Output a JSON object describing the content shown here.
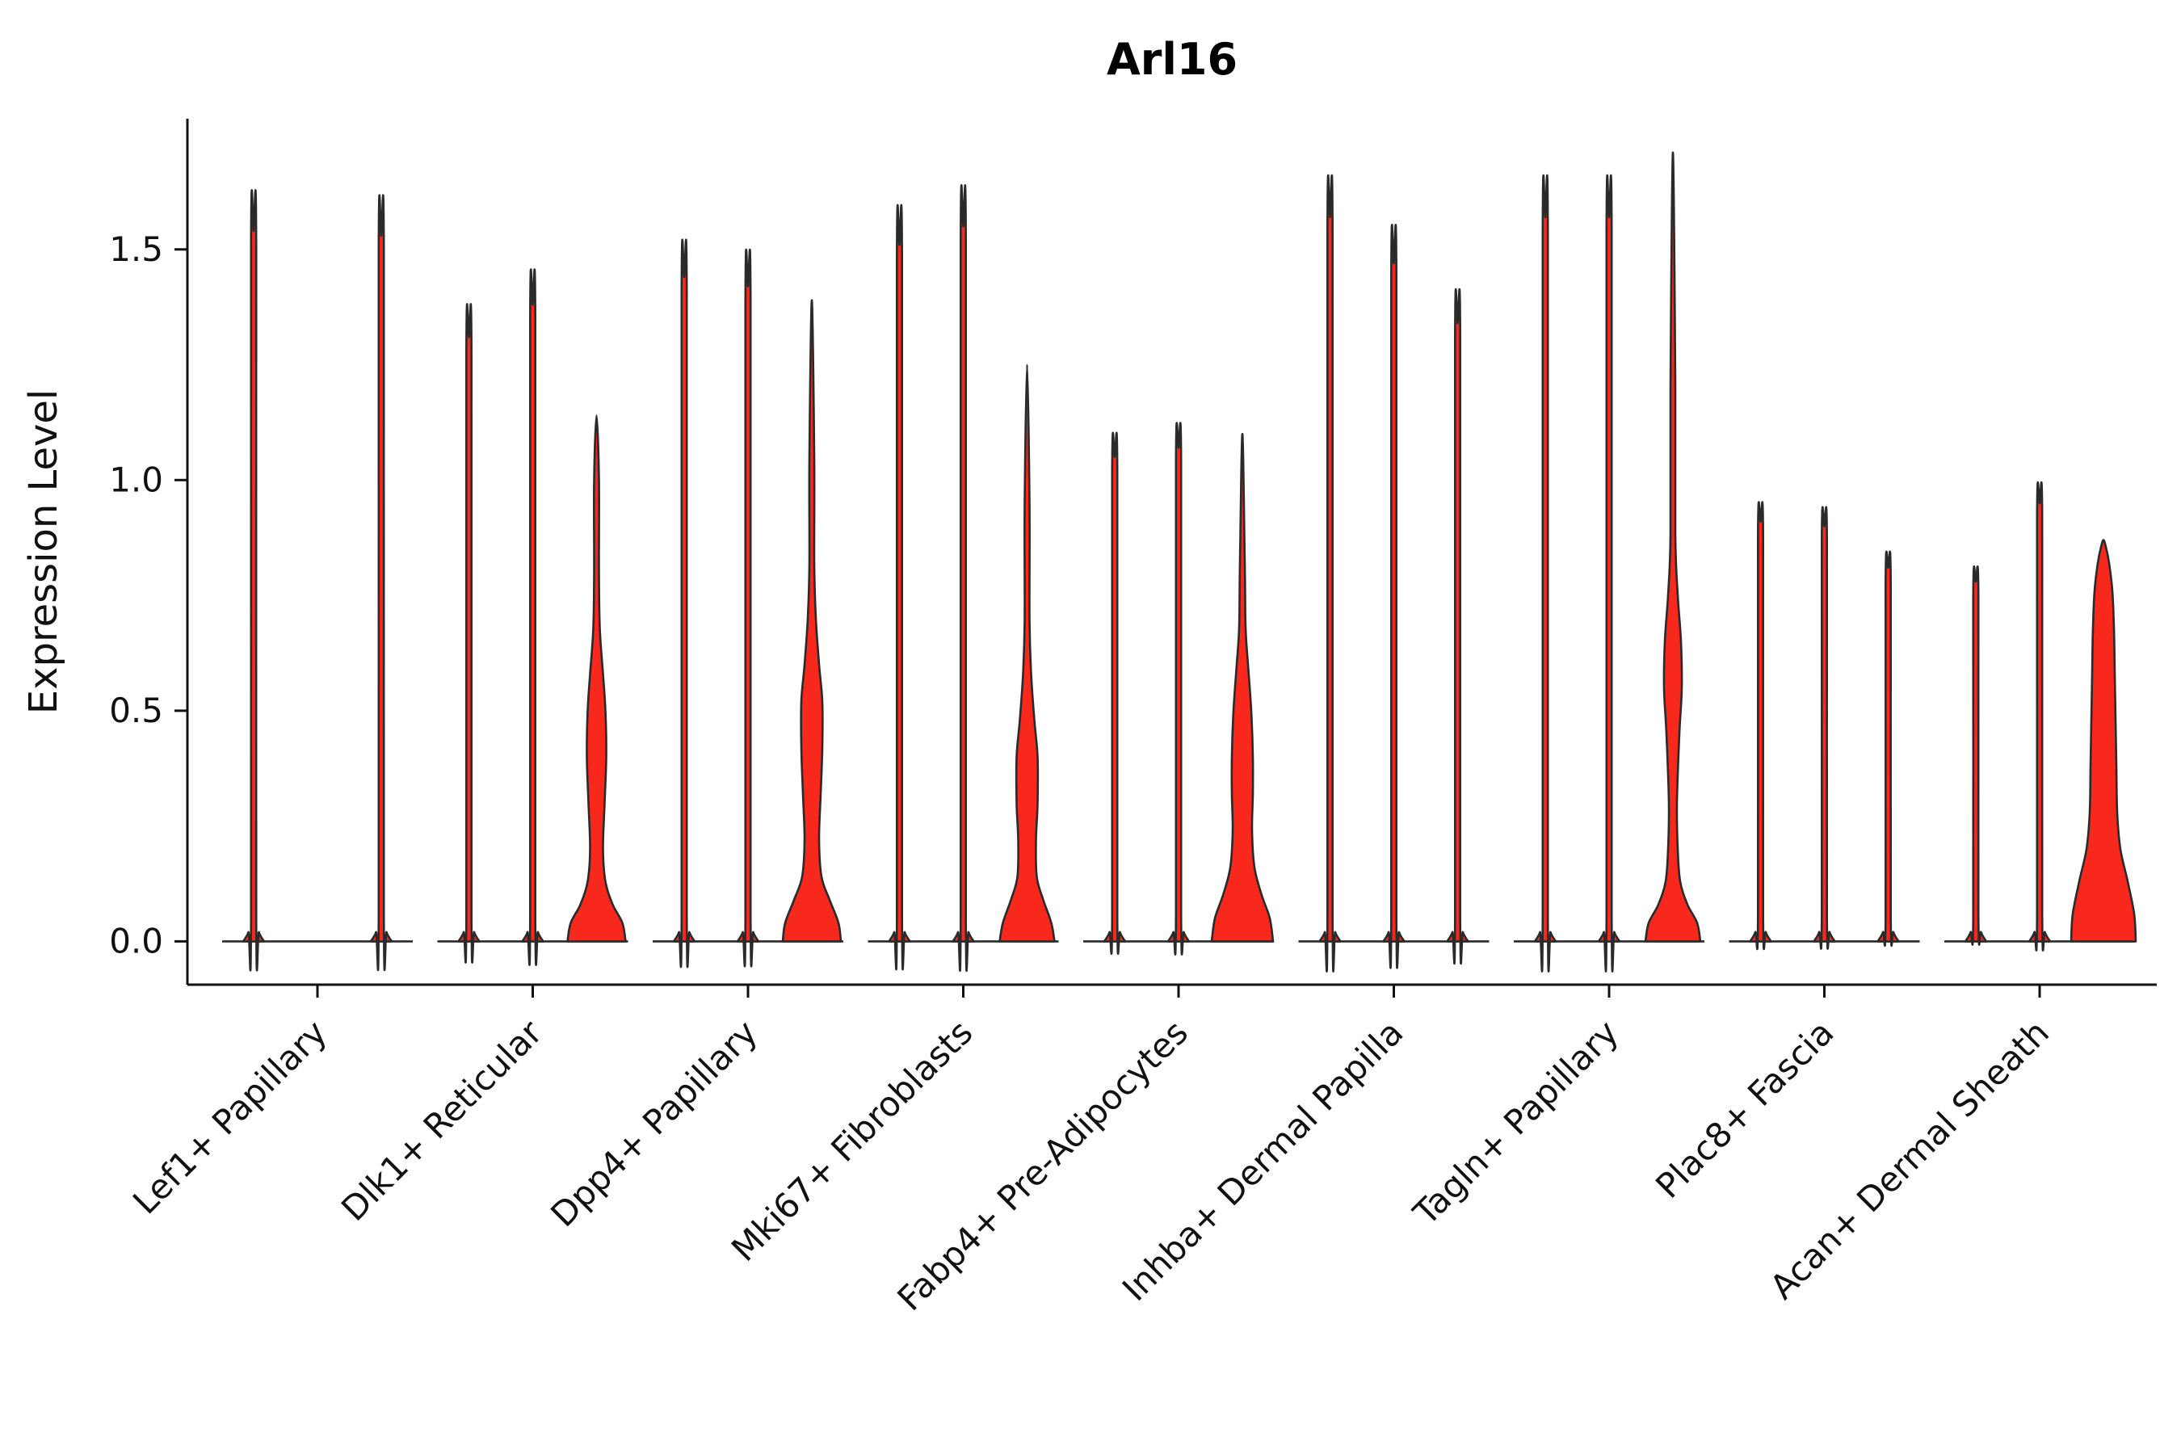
{
  "chart_data": {
    "type": "violin",
    "title": "Arl16",
    "ylabel": "Expression Level",
    "xlabel": "",
    "yticks": [
      0,
      0.5,
      1,
      1.5
    ],
    "ytick_labels": [
      "0.0",
      "0.5",
      "1.0",
      "1.5"
    ],
    "ylim": [
      -0.06,
      1.78
    ],
    "grid": false,
    "legend": "none",
    "fill_color": "#F8281C",
    "stroke_color": "#2A2A2A",
    "axis_color": "#111111",
    "violins_per_group": 3,
    "groups": [
      {
        "label": "Lef1+ Papillary",
        "violins": [
          {
            "max": 1.54
          },
          {
            "max": 0
          },
          {
            "max": 1.53
          }
        ]
      },
      {
        "label": "Dlk1+ Reticular",
        "violins": [
          {
            "max": 1.31
          },
          {
            "max": 1.38
          },
          {
            "max": 1.14,
            "profile": [
              [
                0,
                36
              ],
              [
                0.04,
                32
              ],
              [
                0.08,
                20
              ],
              [
                0.13,
                11
              ],
              [
                0.2,
                8
              ],
              [
                0.3,
                10
              ],
              [
                0.4,
                12
              ],
              [
                0.5,
                11
              ],
              [
                0.58,
                8
              ],
              [
                0.68,
                4
              ],
              [
                0.8,
                3
              ],
              [
                1.0,
                3
              ]
            ]
          }
        ]
      },
      {
        "label": "Dpp4+ Papillary",
        "violins": [
          {
            "max": 1.44
          },
          {
            "max": 1.42
          },
          {
            "max": 1.39,
            "profile": [
              [
                0,
                36
              ],
              [
                0.04,
                33
              ],
              [
                0.09,
                22
              ],
              [
                0.14,
                12
              ],
              [
                0.22,
                9
              ],
              [
                0.32,
                11
              ],
              [
                0.42,
                13
              ],
              [
                0.52,
                13
              ],
              [
                0.6,
                9
              ],
              [
                0.7,
                5
              ],
              [
                0.82,
                3
              ],
              [
                1.05,
                3
              ]
            ]
          }
        ]
      },
      {
        "label": "Mki67+ Fibroblasts",
        "violins": [
          {
            "max": 1.51
          },
          {
            "max": 1.55
          },
          {
            "max": 1.25,
            "profile": [
              [
                0,
                34
              ],
              [
                0.04,
                30
              ],
              [
                0.09,
                20
              ],
              [
                0.14,
                12
              ],
              [
                0.22,
                11
              ],
              [
                0.3,
                13
              ],
              [
                0.4,
                13
              ],
              [
                0.48,
                9
              ],
              [
                0.58,
                5
              ],
              [
                0.7,
                3
              ],
              [
                0.95,
                3
              ]
            ]
          }
        ]
      },
      {
        "label": "Fabp4+ Pre-Adipocytes",
        "violins": [
          {
            "max": 1.05
          },
          {
            "max": 1.07
          },
          {
            "max": 1.1,
            "profile": [
              [
                0,
                38
              ],
              [
                0.05,
                34
              ],
              [
                0.1,
                24
              ],
              [
                0.16,
                15
              ],
              [
                0.24,
                12
              ],
              [
                0.32,
                13
              ],
              [
                0.4,
                13
              ],
              [
                0.5,
                11
              ],
              [
                0.6,
                7
              ],
              [
                0.68,
                4
              ],
              [
                0.82,
                3
              ]
            ]
          }
        ]
      },
      {
        "label": "Inhba+ Dermal Papilla",
        "violins": [
          {
            "max": 1.57
          },
          {
            "max": 1.47
          },
          {
            "max": 1.34
          }
        ]
      },
      {
        "label": "Tagln+ Papillary",
        "violins": [
          {
            "max": 1.57
          },
          {
            "max": 1.57
          },
          {
            "max": 1.71,
            "profile": [
              [
                0,
                34
              ],
              [
                0.04,
                30
              ],
              [
                0.08,
                18
              ],
              [
                0.13,
                9
              ],
              [
                0.2,
                6
              ],
              [
                0.3,
                5
              ],
              [
                0.45,
                8
              ],
              [
                0.55,
                11
              ],
              [
                0.65,
                10
              ],
              [
                0.75,
                6
              ],
              [
                0.88,
                3
              ],
              [
                1.2,
                3
              ]
            ]
          }
        ]
      },
      {
        "label": "Plac8+ Fascia",
        "violins": [
          {
            "max": 0.91
          },
          {
            "max": 0.9
          },
          {
            "max": 0.81
          }
        ]
      },
      {
        "label": "Acan+ Dermal Sheath",
        "violins": [
          {
            "max": 0.78
          },
          {
            "max": 0.95
          },
          {
            "max": 0.87,
            "profile": [
              [
                0,
                40
              ],
              [
                0.06,
                38
              ],
              [
                0.13,
                30
              ],
              [
                0.2,
                21
              ],
              [
                0.28,
                17
              ],
              [
                0.38,
                16
              ],
              [
                0.48,
                15
              ],
              [
                0.58,
                14
              ],
              [
                0.68,
                13
              ],
              [
                0.76,
                11
              ],
              [
                0.82,
                7
              ],
              [
                0.855,
                3
              ]
            ]
          }
        ]
      }
    ]
  }
}
